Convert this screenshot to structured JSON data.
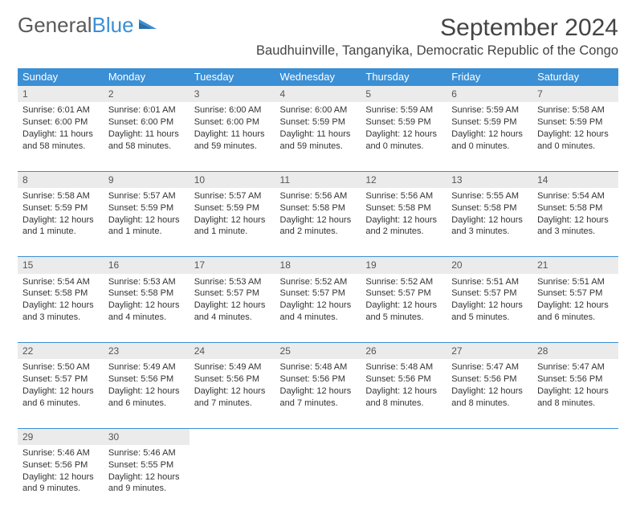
{
  "brand": {
    "part1": "General",
    "part2": "Blue",
    "logo_color": "#3b8fd4",
    "text_color": "#5a5a5a"
  },
  "title": "September 2024",
  "location": "Baudhuinville, Tanganyika, Democratic Republic of the Congo",
  "colors": {
    "header_bg": "#3b8fd4",
    "header_text": "#ffffff",
    "daynum_bg": "#ebebeb",
    "daynum_border": "#3b8fd4",
    "body_text": "#333333"
  },
  "weekdays": [
    "Sunday",
    "Monday",
    "Tuesday",
    "Wednesday",
    "Thursday",
    "Friday",
    "Saturday"
  ],
  "weeks": [
    [
      {
        "n": "1",
        "sr": "Sunrise: 6:01 AM",
        "ss": "Sunset: 6:00 PM",
        "dl": "Daylight: 11 hours and 58 minutes."
      },
      {
        "n": "2",
        "sr": "Sunrise: 6:01 AM",
        "ss": "Sunset: 6:00 PM",
        "dl": "Daylight: 11 hours and 58 minutes."
      },
      {
        "n": "3",
        "sr": "Sunrise: 6:00 AM",
        "ss": "Sunset: 6:00 PM",
        "dl": "Daylight: 11 hours and 59 minutes."
      },
      {
        "n": "4",
        "sr": "Sunrise: 6:00 AM",
        "ss": "Sunset: 5:59 PM",
        "dl": "Daylight: 11 hours and 59 minutes."
      },
      {
        "n": "5",
        "sr": "Sunrise: 5:59 AM",
        "ss": "Sunset: 5:59 PM",
        "dl": "Daylight: 12 hours and 0 minutes."
      },
      {
        "n": "6",
        "sr": "Sunrise: 5:59 AM",
        "ss": "Sunset: 5:59 PM",
        "dl": "Daylight: 12 hours and 0 minutes."
      },
      {
        "n": "7",
        "sr": "Sunrise: 5:58 AM",
        "ss": "Sunset: 5:59 PM",
        "dl": "Daylight: 12 hours and 0 minutes."
      }
    ],
    [
      {
        "n": "8",
        "sr": "Sunrise: 5:58 AM",
        "ss": "Sunset: 5:59 PM",
        "dl": "Daylight: 12 hours and 1 minute."
      },
      {
        "n": "9",
        "sr": "Sunrise: 5:57 AM",
        "ss": "Sunset: 5:59 PM",
        "dl": "Daylight: 12 hours and 1 minute."
      },
      {
        "n": "10",
        "sr": "Sunrise: 5:57 AM",
        "ss": "Sunset: 5:59 PM",
        "dl": "Daylight: 12 hours and 1 minute."
      },
      {
        "n": "11",
        "sr": "Sunrise: 5:56 AM",
        "ss": "Sunset: 5:58 PM",
        "dl": "Daylight: 12 hours and 2 minutes."
      },
      {
        "n": "12",
        "sr": "Sunrise: 5:56 AM",
        "ss": "Sunset: 5:58 PM",
        "dl": "Daylight: 12 hours and 2 minutes."
      },
      {
        "n": "13",
        "sr": "Sunrise: 5:55 AM",
        "ss": "Sunset: 5:58 PM",
        "dl": "Daylight: 12 hours and 3 minutes."
      },
      {
        "n": "14",
        "sr": "Sunrise: 5:54 AM",
        "ss": "Sunset: 5:58 PM",
        "dl": "Daylight: 12 hours and 3 minutes."
      }
    ],
    [
      {
        "n": "15",
        "sr": "Sunrise: 5:54 AM",
        "ss": "Sunset: 5:58 PM",
        "dl": "Daylight: 12 hours and 3 minutes."
      },
      {
        "n": "16",
        "sr": "Sunrise: 5:53 AM",
        "ss": "Sunset: 5:58 PM",
        "dl": "Daylight: 12 hours and 4 minutes."
      },
      {
        "n": "17",
        "sr": "Sunrise: 5:53 AM",
        "ss": "Sunset: 5:57 PM",
        "dl": "Daylight: 12 hours and 4 minutes."
      },
      {
        "n": "18",
        "sr": "Sunrise: 5:52 AM",
        "ss": "Sunset: 5:57 PM",
        "dl": "Daylight: 12 hours and 4 minutes."
      },
      {
        "n": "19",
        "sr": "Sunrise: 5:52 AM",
        "ss": "Sunset: 5:57 PM",
        "dl": "Daylight: 12 hours and 5 minutes."
      },
      {
        "n": "20",
        "sr": "Sunrise: 5:51 AM",
        "ss": "Sunset: 5:57 PM",
        "dl": "Daylight: 12 hours and 5 minutes."
      },
      {
        "n": "21",
        "sr": "Sunrise: 5:51 AM",
        "ss": "Sunset: 5:57 PM",
        "dl": "Daylight: 12 hours and 6 minutes."
      }
    ],
    [
      {
        "n": "22",
        "sr": "Sunrise: 5:50 AM",
        "ss": "Sunset: 5:57 PM",
        "dl": "Daylight: 12 hours and 6 minutes."
      },
      {
        "n": "23",
        "sr": "Sunrise: 5:49 AM",
        "ss": "Sunset: 5:56 PM",
        "dl": "Daylight: 12 hours and 6 minutes."
      },
      {
        "n": "24",
        "sr": "Sunrise: 5:49 AM",
        "ss": "Sunset: 5:56 PM",
        "dl": "Daylight: 12 hours and 7 minutes."
      },
      {
        "n": "25",
        "sr": "Sunrise: 5:48 AM",
        "ss": "Sunset: 5:56 PM",
        "dl": "Daylight: 12 hours and 7 minutes."
      },
      {
        "n": "26",
        "sr": "Sunrise: 5:48 AM",
        "ss": "Sunset: 5:56 PM",
        "dl": "Daylight: 12 hours and 8 minutes."
      },
      {
        "n": "27",
        "sr": "Sunrise: 5:47 AM",
        "ss": "Sunset: 5:56 PM",
        "dl": "Daylight: 12 hours and 8 minutes."
      },
      {
        "n": "28",
        "sr": "Sunrise: 5:47 AM",
        "ss": "Sunset: 5:56 PM",
        "dl": "Daylight: 12 hours and 8 minutes."
      }
    ],
    [
      {
        "n": "29",
        "sr": "Sunrise: 5:46 AM",
        "ss": "Sunset: 5:56 PM",
        "dl": "Daylight: 12 hours and 9 minutes."
      },
      {
        "n": "30",
        "sr": "Sunrise: 5:46 AM",
        "ss": "Sunset: 5:55 PM",
        "dl": "Daylight: 12 hours and 9 minutes."
      },
      null,
      null,
      null,
      null,
      null
    ]
  ]
}
